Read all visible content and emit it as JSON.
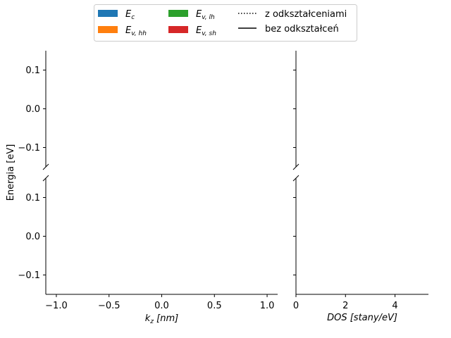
{
  "chart_data": {
    "type": "line",
    "layout": "broken-axis, 2x2 panels",
    "ylabel": "Energia [eV]",
    "xlabel_main": "k_z [nm]",
    "xlabel_dos": "DOS [stany/eV]",
    "main_xlim": [
      -1.1,
      1.1
    ],
    "main_xticks": [
      -1.0,
      -0.5,
      0.0,
      0.5,
      1.0
    ],
    "main_xtick_labels": [
      "−1.0",
      "−0.5",
      "0.0",
      "0.5",
      "1.0"
    ],
    "dos_xlim": [
      0,
      5.35
    ],
    "dos_xticks": [
      0,
      2,
      4
    ],
    "dos_xtick_labels": [
      "0",
      "2",
      "4"
    ],
    "upper_ylim": [
      -0.15,
      0.15
    ],
    "lower_ylim": [
      -0.15,
      0.15
    ],
    "yticks": [
      0.1,
      0.0,
      -0.1
    ],
    "ytick_labels": [
      "0.1",
      "0.0",
      "−0.1"
    ],
    "legend_position": "top-center, above plot",
    "legend": {
      "bands": [
        {
          "symbol": "E",
          "sub": "c",
          "color": "#1f77b4"
        },
        {
          "symbol": "E",
          "sub": "v, hh",
          "color": "#ff7f0e"
        },
        {
          "symbol": "E",
          "sub": "v, lh",
          "color": "#2ca02c"
        },
        {
          "symbol": "E",
          "sub": "v, sh",
          "color": "#d62728"
        }
      ],
      "styles": [
        {
          "label": "z odkształceniami",
          "dash": "dotted"
        },
        {
          "label": "bez odkształceń",
          "dash": "solid"
        }
      ]
    },
    "series": [],
    "grid": false
  }
}
